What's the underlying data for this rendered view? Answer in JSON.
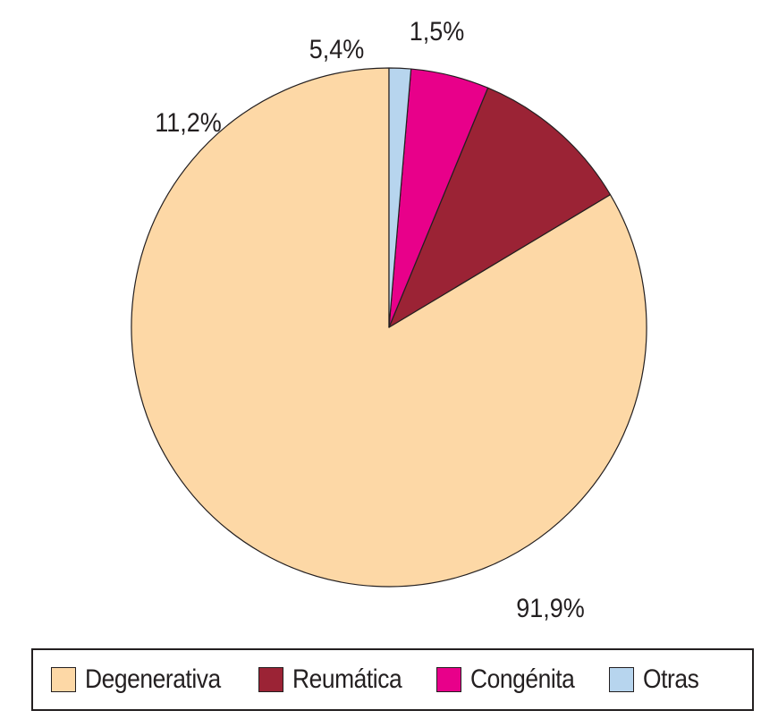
{
  "chart_data": {
    "type": "pie",
    "start": "top",
    "direction": "counterclockwise",
    "slices": [
      {
        "label": "Degenerativa",
        "value": 91.9,
        "value_label": "91,9%",
        "color": "#fdd8a6"
      },
      {
        "label": "Reumática",
        "value": 11.2,
        "value_label": "11,2%",
        "color": "#9b2335"
      },
      {
        "label": "Congénita",
        "value": 5.4,
        "value_label": "5,4%",
        "color": "#e8008a"
      },
      {
        "label": "Otras",
        "value": 1.5,
        "value_label": "1,5%",
        "color": "#b7d5ee"
      }
    ],
    "legend": {
      "placement": "bottom",
      "entries": [
        "Degenerativa",
        "Reumática",
        "Congénita",
        "Otras"
      ]
    }
  }
}
